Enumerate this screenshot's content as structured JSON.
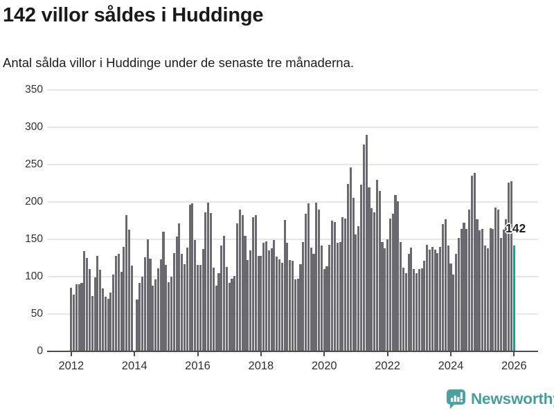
{
  "header": {
    "title": "142 villor såldes i Huddinge",
    "subtitle": "Antal sålda villor i Huddinge under de senaste tre månaderna."
  },
  "footer": {
    "brand": "Newsworthy"
  },
  "colors": {
    "bar": "#69696f",
    "highlight": "#189f9f",
    "grid": "#e7e7e7",
    "axis": "#4b4b4b",
    "text": "#1c1c1c",
    "brand_teal": "#459e9d"
  },
  "chart_data": {
    "type": "bar",
    "title": "142 villor såldes i Huddinge",
    "subtitle": "Antal sålda villor i Huddinge under de senaste tre månaderna.",
    "xlabel": "",
    "ylabel": "",
    "frequency": "monthly",
    "start_month": "2012-01",
    "end_month": "2026-01",
    "ylim": [
      0,
      350
    ],
    "y_ticks": [
      0,
      50,
      100,
      150,
      200,
      250,
      300,
      350
    ],
    "x_tick_labels": [
      "2012",
      "2014",
      "2016",
      "2018",
      "2020",
      "2022",
      "2024",
      "2026"
    ],
    "x_tick_step_months": 24,
    "grid": true,
    "values": [
      85,
      76,
      90,
      90,
      92,
      134,
      125,
      110,
      74,
      99,
      128,
      109,
      84,
      73,
      71,
      79,
      103,
      128,
      131,
      107,
      140,
      182,
      163,
      115,
      null,
      70,
      92,
      100,
      126,
      150,
      124,
      88,
      96,
      111,
      123,
      160,
      116,
      93,
      100,
      132,
      154,
      171,
      131,
      117,
      139,
      196,
      198,
      149,
      116,
      116,
      137,
      186,
      199,
      185,
      112,
      88,
      105,
      142,
      155,
      113,
      92,
      97,
      101,
      171,
      190,
      182,
      155,
      122,
      135,
      180,
      182,
      128,
      128,
      145,
      147,
      135,
      138,
      149,
      127,
      123,
      119,
      176,
      145,
      122,
      121,
      96,
      97,
      117,
      146,
      184,
      198,
      139,
      131,
      199,
      190,
      142,
      110,
      114,
      143,
      175,
      173,
      145,
      146,
      180,
      178,
      224,
      246,
      206,
      157,
      168,
      223,
      277,
      290,
      219,
      192,
      186,
      230,
      215,
      146,
      138,
      150,
      178,
      184,
      209,
      201,
      146,
      112,
      105,
      131,
      139,
      110,
      105,
      110,
      111,
      121,
      143,
      136,
      140,
      136,
      132,
      140,
      170,
      177,
      142,
      118,
      103,
      131,
      152,
      164,
      172,
      164,
      190,
      235,
      239,
      177,
      162,
      164,
      142,
      138,
      165,
      164,
      193,
      190,
      152,
      163,
      177,
      226,
      228,
      142
    ],
    "highlight": {
      "index": 168,
      "label": "142",
      "value": 142
    },
    "legend": null
  }
}
